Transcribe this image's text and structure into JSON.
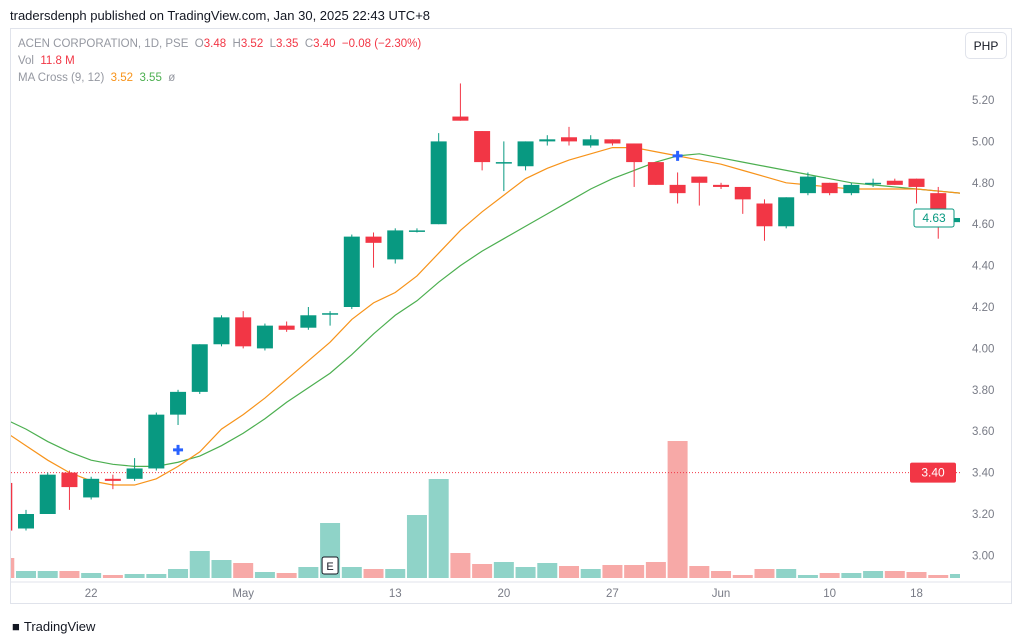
{
  "published": "tradersdenph published on TradingView.com, Jan 30, 2025 22:43 UTC+8",
  "legend": {
    "symbol": "ACEN CORPORATION, 1D, PSE",
    "open_label": "O",
    "open": "3.48",
    "high_label": "H",
    "high": "3.52",
    "low_label": "L",
    "low": "3.35",
    "close_label": "C",
    "close": "3.40",
    "change": "−0.08 (−2.30%)",
    "vol_label": "Vol",
    "vol": "11.8 M",
    "ma_label": "MA Cross (9, 12)",
    "ma_fast": "3.52",
    "ma_slow": "3.55",
    "ma_symbol": "ø"
  },
  "currency": "PHP",
  "footer_brand": "TradingView",
  "colors": {
    "up": "#089981",
    "down": "#f23645",
    "vol_up": "#8fd3c8",
    "vol_down": "#f7a9a7",
    "ma_fast": "#f7931a",
    "ma_slow": "#4caf50",
    "cross": "#2962ff"
  },
  "chart_data": {
    "type": "candlestick",
    "y_ticks": [
      "5.20",
      "5.00",
      "4.80",
      "4.60",
      "4.40",
      "4.20",
      "4.00",
      "3.80",
      "3.60",
      "3.40",
      "3.20",
      "3.00"
    ],
    "ylim": [
      2.88,
      5.32
    ],
    "x_labels": [
      {
        "i": 4,
        "label": "22"
      },
      {
        "i": 11,
        "label": "May"
      },
      {
        "i": 18,
        "label": "13"
      },
      {
        "i": 23,
        "label": "20"
      },
      {
        "i": 28,
        "label": "27"
      },
      {
        "i": 33,
        "label": "Jun"
      },
      {
        "i": 38,
        "label": "10"
      },
      {
        "i": 42,
        "label": "18"
      }
    ],
    "last_price_label": "4.63",
    "price_line_label": "3.40",
    "price_line_value": 3.4,
    "earnings_marker": {
      "i": 15,
      "label": "E"
    },
    "cross_markers": [
      {
        "i": 8,
        "price": 3.51
      },
      {
        "i": 31,
        "price": 4.93
      }
    ],
    "ohlc": [
      [
        3.35,
        3.36,
        3.12,
        3.12
      ],
      [
        3.13,
        3.22,
        3.12,
        3.2
      ],
      [
        3.2,
        3.4,
        3.2,
        3.39
      ],
      [
        3.4,
        3.41,
        3.22,
        3.33
      ],
      [
        3.28,
        3.38,
        3.27,
        3.37
      ],
      [
        3.37,
        3.39,
        3.32,
        3.36
      ],
      [
        3.37,
        3.47,
        3.36,
        3.42
      ],
      [
        3.42,
        3.69,
        3.41,
        3.68
      ],
      [
        3.68,
        3.8,
        3.63,
        3.79
      ],
      [
        3.79,
        4.02,
        3.78,
        4.02
      ],
      [
        4.02,
        4.16,
        4.01,
        4.15
      ],
      [
        4.15,
        4.18,
        4.0,
        4.01
      ],
      [
        4.0,
        4.12,
        3.99,
        4.11
      ],
      [
        4.11,
        4.13,
        4.08,
        4.09
      ],
      [
        4.1,
        4.2,
        4.09,
        4.16
      ],
      [
        4.17,
        4.18,
        4.11,
        4.17
      ],
      [
        4.2,
        4.55,
        4.19,
        4.54
      ],
      [
        4.54,
        4.56,
        4.39,
        4.51
      ],
      [
        4.43,
        4.58,
        4.41,
        4.57
      ],
      [
        4.57,
        4.58,
        4.56,
        4.57
      ],
      [
        4.6,
        5.04,
        4.6,
        5.0
      ],
      [
        5.12,
        5.28,
        5.1,
        5.1
      ],
      [
        5.05,
        5.05,
        4.86,
        4.9
      ],
      [
        4.9,
        5.0,
        4.76,
        4.9
      ],
      [
        4.88,
        5.0,
        4.86,
        5.0
      ],
      [
        5.0,
        5.03,
        4.98,
        5.01
      ],
      [
        5.02,
        5.07,
        4.98,
        5.0
      ],
      [
        4.98,
        5.03,
        4.97,
        5.01
      ],
      [
        5.01,
        5.01,
        4.98,
        4.99
      ],
      [
        4.99,
        4.99,
        4.78,
        4.9
      ],
      [
        4.9,
        4.9,
        4.79,
        4.79
      ],
      [
        4.79,
        4.85,
        4.7,
        4.75
      ],
      [
        4.83,
        4.83,
        4.69,
        4.8
      ],
      [
        4.79,
        4.8,
        4.77,
        4.78
      ],
      [
        4.78,
        4.78,
        4.65,
        4.72
      ],
      [
        4.7,
        4.72,
        4.52,
        4.59
      ],
      [
        4.59,
        4.73,
        4.58,
        4.73
      ],
      [
        4.75,
        4.85,
        4.74,
        4.83
      ],
      [
        4.8,
        4.8,
        4.74,
        4.75
      ],
      [
        4.75,
        4.8,
        4.74,
        4.79
      ],
      [
        4.8,
        4.82,
        4.78,
        4.8
      ],
      [
        4.81,
        4.82,
        4.79,
        4.79
      ],
      [
        4.82,
        4.82,
        4.7,
        4.78
      ],
      [
        4.75,
        4.78,
        4.53,
        4.65
      ],
      [
        4.61,
        4.63,
        4.61,
        4.63
      ]
    ],
    "volume_millions": [
      8,
      2.8,
      2.8,
      2.8,
      2,
      1.2,
      1.6,
      1.6,
      3.6,
      10.8,
      7.2,
      6,
      2.4,
      2,
      4.4,
      22,
      4.4,
      3.6,
      3.6,
      25.2,
      39.6,
      10,
      5.6,
      6.4,
      4.4,
      6,
      4.8,
      3.6,
      5.2,
      5.2,
      6.4,
      54.8,
      4.8,
      2.8,
      1.2,
      3.6,
      3.6,
      1.2,
      2,
      2,
      2.8,
      2.8,
      2.4,
      1.2,
      1.6
    ],
    "ma_fast_9": [
      3.6,
      3.53,
      3.46,
      3.4,
      3.36,
      3.34,
      3.34,
      3.37,
      3.43,
      3.5,
      3.61,
      3.68,
      3.76,
      3.85,
      3.94,
      4.03,
      4.14,
      4.22,
      4.27,
      4.35,
      4.46,
      4.57,
      4.66,
      4.74,
      4.82,
      4.87,
      4.91,
      4.94,
      4.97,
      4.97,
      4.95,
      4.93,
      4.91,
      4.89,
      4.86,
      4.83,
      4.8,
      4.79,
      4.78,
      4.77,
      4.77,
      4.77,
      4.77,
      4.76,
      4.75
    ],
    "ma_slow_12": [
      3.66,
      3.61,
      3.55,
      3.5,
      3.46,
      3.44,
      3.43,
      3.43,
      3.45,
      3.48,
      3.53,
      3.59,
      3.66,
      3.74,
      3.81,
      3.88,
      3.97,
      4.07,
      4.16,
      4.23,
      4.32,
      4.4,
      4.47,
      4.53,
      4.59,
      4.65,
      4.71,
      4.77,
      4.82,
      4.86,
      4.9,
      4.93,
      4.94,
      4.92,
      4.9,
      4.88,
      4.86,
      4.84,
      4.82,
      4.8,
      4.79,
      4.78,
      4.77,
      4.76,
      4.75
    ]
  }
}
